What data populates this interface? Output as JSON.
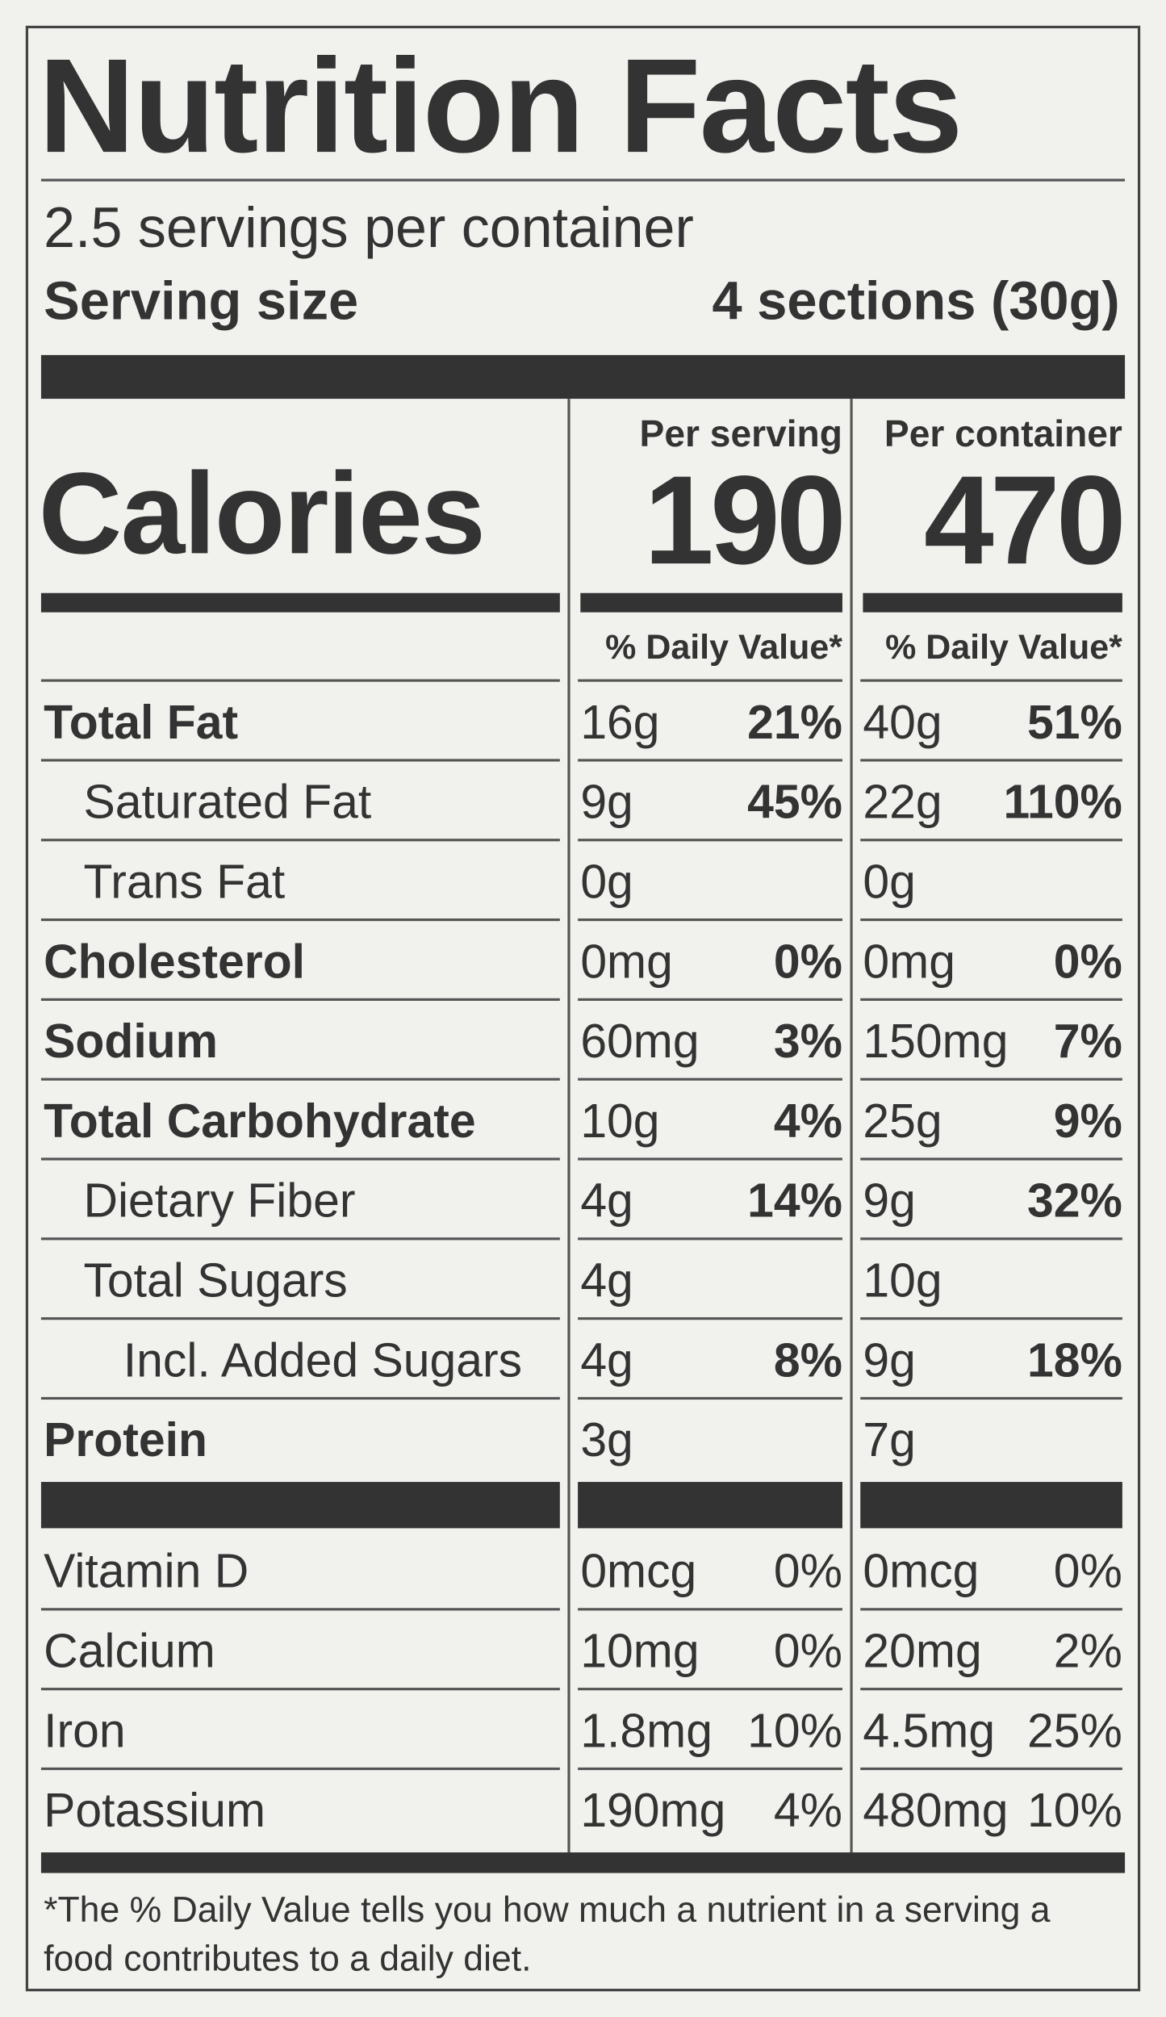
{
  "title": "Nutrition Facts",
  "servings_per_container": "2.5 servings per container",
  "serving_size": {
    "label": "Serving size",
    "value": "4 sections (30g)"
  },
  "calories_label": "Calories",
  "columns": [
    {
      "header": "Per serving",
      "calories": "190",
      "dv_header": "% Daily Value*"
    },
    {
      "header": "Per container",
      "calories": "470",
      "dv_header": "% Daily Value*"
    }
  ],
  "nutrients": [
    {
      "name": "Total Fat",
      "bold": true,
      "indent": 0,
      "values": [
        {
          "amount": "16g",
          "dv": "21%"
        },
        {
          "amount": "40g",
          "dv": "51%"
        }
      ]
    },
    {
      "name": "Saturated Fat",
      "bold": false,
      "indent": 1,
      "values": [
        {
          "amount": "9g",
          "dv": "45%"
        },
        {
          "amount": "22g",
          "dv": "110%"
        }
      ]
    },
    {
      "name": "Trans Fat",
      "bold": false,
      "indent": 1,
      "values": [
        {
          "amount": "0g",
          "dv": null
        },
        {
          "amount": "0g",
          "dv": null
        }
      ]
    },
    {
      "name": "Cholesterol",
      "bold": true,
      "indent": 0,
      "values": [
        {
          "amount": "0mg",
          "dv": "0%"
        },
        {
          "amount": "0mg",
          "dv": "0%"
        }
      ]
    },
    {
      "name": "Sodium",
      "bold": true,
      "indent": 0,
      "values": [
        {
          "amount": "60mg",
          "dv": "3%"
        },
        {
          "amount": "150mg",
          "dv": "7%"
        }
      ]
    },
    {
      "name": "Total Carbohydrate",
      "bold": true,
      "indent": 0,
      "values": [
        {
          "amount": "10g",
          "dv": "4%"
        },
        {
          "amount": "25g",
          "dv": "9%"
        }
      ]
    },
    {
      "name": "Dietary Fiber",
      "bold": false,
      "indent": 1,
      "values": [
        {
          "amount": "4g",
          "dv": "14%"
        },
        {
          "amount": "9g",
          "dv": "32%"
        }
      ]
    },
    {
      "name": "Total Sugars",
      "bold": false,
      "indent": 1,
      "values": [
        {
          "amount": "4g",
          "dv": null
        },
        {
          "amount": "10g",
          "dv": null
        }
      ]
    },
    {
      "name": "Incl. Added Sugars",
      "bold": false,
      "indent": 2,
      "values": [
        {
          "amount": "4g",
          "dv": "8%"
        },
        {
          "amount": "9g",
          "dv": "18%"
        }
      ]
    },
    {
      "name": "Protein",
      "bold": true,
      "indent": 0,
      "values": [
        {
          "amount": "3g",
          "dv": null
        },
        {
          "amount": "7g",
          "dv": null
        }
      ]
    }
  ],
  "vitamins": [
    {
      "name": "Vitamin D",
      "values": [
        {
          "amount": "0mcg",
          "dv": "0%"
        },
        {
          "amount": "0mcg",
          "dv": "0%"
        }
      ]
    },
    {
      "name": "Calcium",
      "values": [
        {
          "amount": "10mg",
          "dv": "0%"
        },
        {
          "amount": "20mg",
          "dv": "2%"
        }
      ]
    },
    {
      "name": "Iron",
      "values": [
        {
          "amount": "1.8mg",
          "dv": "10%"
        },
        {
          "amount": "4.5mg",
          "dv": "25%"
        }
      ]
    },
    {
      "name": "Potassium",
      "values": [
        {
          "amount": "190mg",
          "dv": "4%"
        },
        {
          "amount": "480mg",
          "dv": "10%"
        }
      ]
    }
  ],
  "footnote": "*The % Daily Value tells you how much a nutrient in a serving a food contributes to a daily diet."
}
